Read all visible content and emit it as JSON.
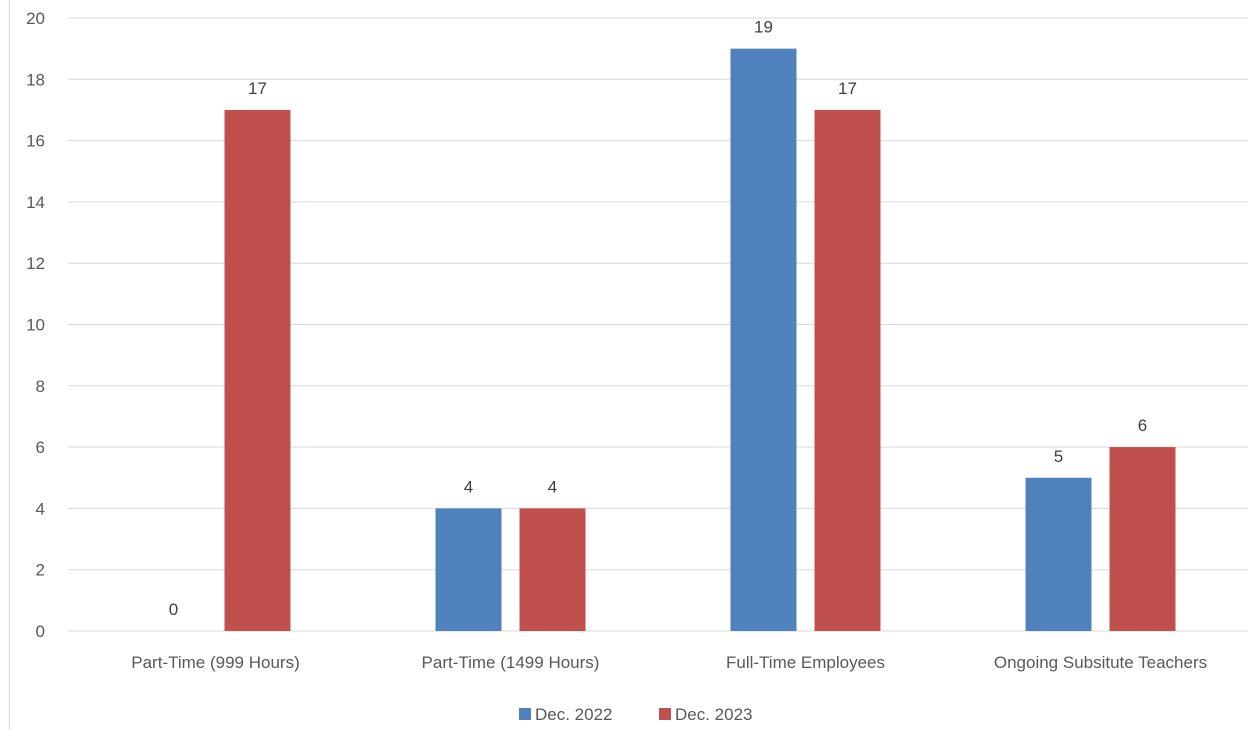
{
  "chart_data": {
    "type": "bar",
    "title": "",
    "xlabel": "",
    "ylabel": "",
    "categories": [
      "Part-Time (999 Hours)",
      "Part-Time (1499 Hours)",
      "Full-Time Employees",
      "Ongoing Subsitute Teachers"
    ],
    "series": [
      {
        "name": "Dec. 2022",
        "color": "#4f81bd",
        "values": [
          0,
          4,
          19,
          5
        ]
      },
      {
        "name": "Dec. 2023",
        "color": "#c0504d",
        "values": [
          17,
          4,
          17,
          6
        ]
      }
    ],
    "ylim": [
      0,
      20
    ],
    "yticks": [
      0,
      2,
      4,
      6,
      8,
      10,
      12,
      14,
      16,
      18,
      20
    ],
    "grid": true,
    "data_labels": true,
    "legend_position": "bottom"
  }
}
